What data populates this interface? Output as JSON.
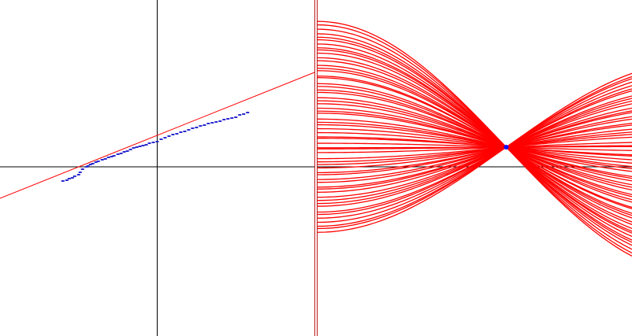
{
  "colors": {
    "background": "#ffffff",
    "axis": "#000000",
    "fit_line": "#ff0000",
    "points": "#2a2ad0",
    "curves": "#ff0000",
    "divider": "#c01818",
    "intersection": "#1010ff"
  },
  "chart_data": [
    {
      "type": "scatter",
      "panel": "data-space",
      "grid": false,
      "xlim": [
        -2,
        2
      ],
      "ylim": [
        -2.15,
        2.12
      ],
      "fit_line": {
        "slope": 0.4,
        "intercept": 0.4
      },
      "series": [
        {
          "x": [
            -1.2,
            -1.15,
            -1.12,
            -1.08,
            -1.05,
            -1.0,
            -0.98,
            -0.95,
            -0.9,
            -0.88,
            -0.85,
            -0.82,
            -0.78,
            -0.75,
            -0.7,
            -0.66,
            -0.62,
            -0.58,
            -0.55,
            -0.5,
            -0.46,
            -0.42,
            -0.38,
            -0.34,
            -0.3,
            -0.26,
            -0.22,
            -0.18,
            -0.14,
            -0.1,
            -0.05,
            0.0,
            0.05,
            0.1,
            0.15,
            0.2,
            0.25,
            0.3,
            0.35,
            0.4,
            0.45,
            0.5,
            0.55,
            0.6,
            0.65,
            0.7,
            0.75,
            0.8,
            0.85,
            0.9,
            0.95,
            1.0,
            1.05,
            1.1,
            1.15
          ],
          "y": [
            -0.18,
            -0.17,
            -0.15,
            -0.14,
            -0.12,
            -0.1,
            -0.07,
            -0.03,
            0.0,
            0.01,
            0.03,
            0.04,
            0.06,
            0.07,
            0.09,
            0.1,
            0.12,
            0.13,
            0.14,
            0.16,
            0.17,
            0.19,
            0.2,
            0.22,
            0.24,
            0.25,
            0.26,
            0.27,
            0.28,
            0.3,
            0.31,
            0.32,
            0.35,
            0.37,
            0.39,
            0.41,
            0.42,
            0.44,
            0.45,
            0.47,
            0.49,
            0.5,
            0.52,
            0.53,
            0.55,
            0.56,
            0.57,
            0.58,
            0.6,
            0.61,
            0.62,
            0.63,
            0.66,
            0.67,
            0.69
          ]
        }
      ]
    },
    {
      "type": "line",
      "panel": "parameter-space",
      "grid": false,
      "xlim": [
        0,
        4
      ],
      "ylim": [
        -2.15,
        2.12
      ],
      "intersection": {
        "x": 2.4,
        "y": 0.25
      },
      "curve_count": 60
    }
  ]
}
